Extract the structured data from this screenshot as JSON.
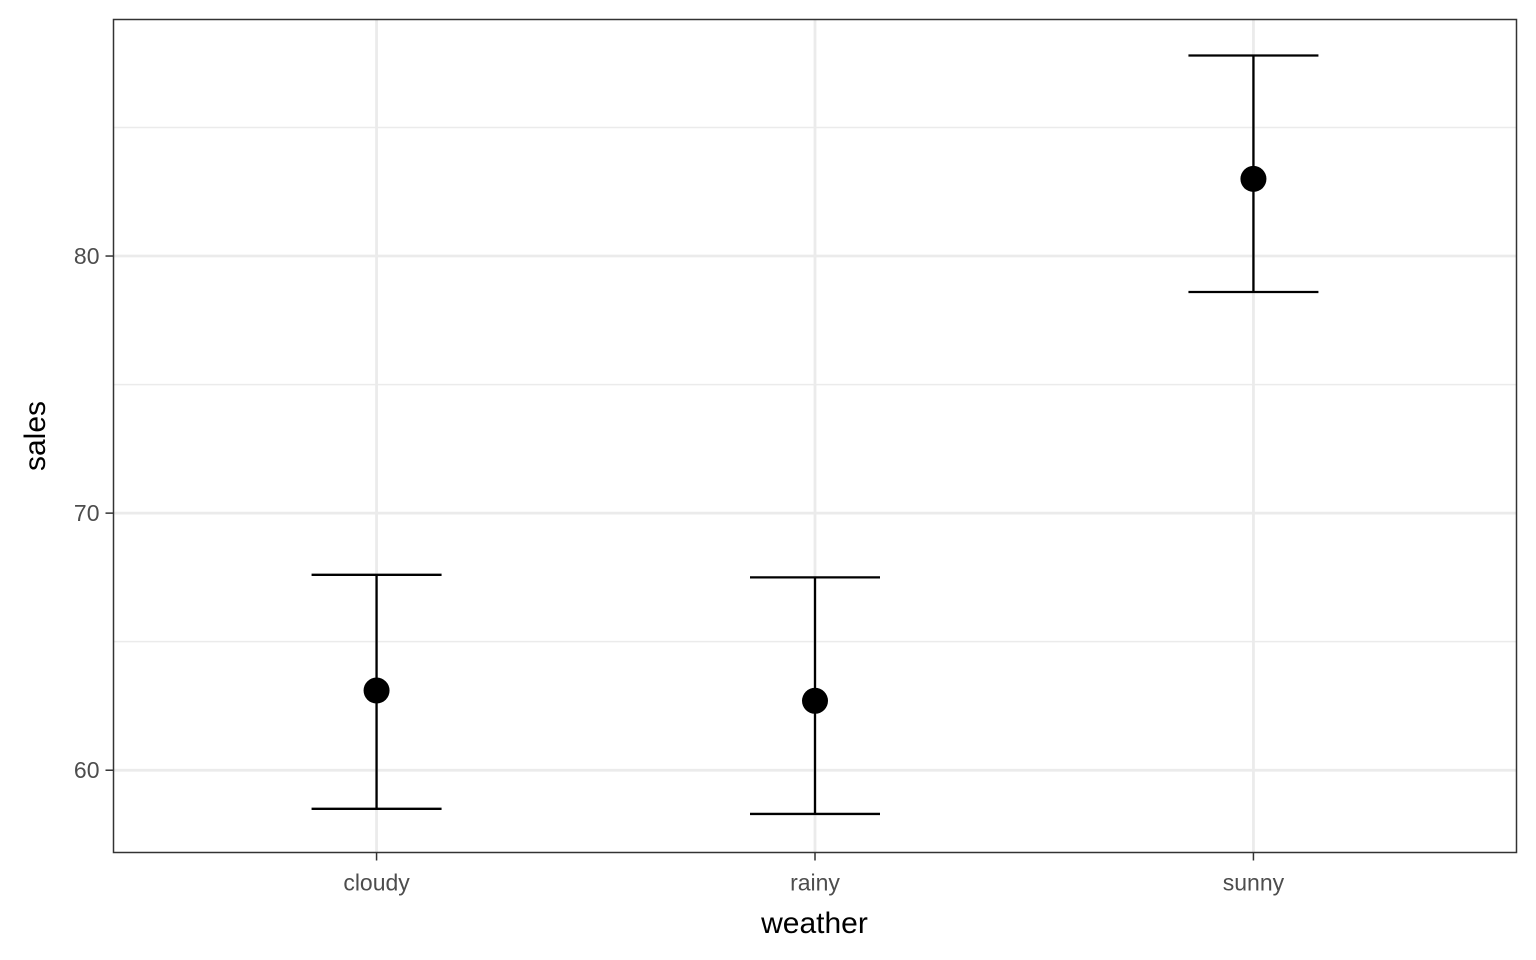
{
  "chart_data": {
    "type": "errorbar",
    "xlabel": "weather",
    "ylabel": "sales",
    "categories": [
      "cloudy",
      "rainy",
      "sunny"
    ],
    "series": [
      {
        "mean": [
          63.1,
          62.7,
          83.0
        ],
        "lower": [
          58.5,
          58.3,
          78.6
        ],
        "upper": [
          67.6,
          67.5,
          87.8
        ]
      }
    ],
    "ylim": [
      56.8,
      89.2
    ],
    "yticks": [
      60,
      70,
      80
    ],
    "y_minor_ticks": [
      65,
      75,
      85
    ],
    "grid": true,
    "colors": {
      "marks": "#000000",
      "grid": "#ebebeb",
      "panel_border": "#333333",
      "tick_text": "#4d4d4d"
    }
  }
}
